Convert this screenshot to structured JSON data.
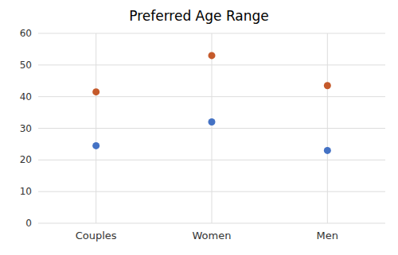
{
  "chart_data": {
    "type": "scatter",
    "title": "Preferred Age Range",
    "categories": [
      "Couples",
      "Women",
      "Men"
    ],
    "series": [
      {
        "color": "#4472C4",
        "values": [
          24.5,
          32,
          23
        ]
      },
      {
        "color": "#C55A2B",
        "values": [
          41.5,
          53,
          43.5
        ]
      }
    ],
    "ylim": [
      0,
      60
    ],
    "yticks": [
      0,
      10,
      20,
      30,
      40,
      50,
      60
    ],
    "grid": true
  }
}
